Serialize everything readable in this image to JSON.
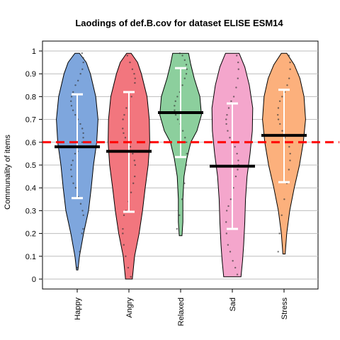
{
  "chart_data": {
    "type": "violin",
    "title": "Laodings of def.B.cov for dataset ELISE ESM14",
    "xlabel": "",
    "ylabel": "Communality of items",
    "ylim": [
      0,
      1
    ],
    "yticks": [
      "0",
      "0.1",
      "0.2",
      "0.3",
      "0.4",
      "0.5",
      "0.6",
      "0.7",
      "0.8",
      "0.9",
      "1"
    ],
    "categories": [
      "Happy",
      "Angry",
      "Relaxed",
      "Sad",
      "Stress"
    ],
    "reference_line": {
      "value": 0.6,
      "color": "#ff0000",
      "style": "dashed"
    },
    "grid": true,
    "series": [
      {
        "color": "#7ea6dd",
        "min": 0.04,
        "max": 0.99,
        "mean": 0.58,
        "sd_low": 0.355,
        "sd_high": 0.81,
        "shape": [
          [
            0.04,
            0.03
          ],
          [
            0.1,
            0.1
          ],
          [
            0.2,
            0.28
          ],
          [
            0.3,
            0.5
          ],
          [
            0.4,
            0.62
          ],
          [
            0.5,
            0.72
          ],
          [
            0.6,
            0.86
          ],
          [
            0.7,
            0.92
          ],
          [
            0.8,
            0.82
          ],
          [
            0.9,
            0.58
          ],
          [
            0.95,
            0.4
          ],
          [
            0.99,
            0.1
          ]
        ],
        "points": [
          0.05,
          0.12,
          0.2,
          0.22,
          0.28,
          0.3,
          0.33,
          0.36,
          0.4,
          0.42,
          0.45,
          0.48,
          0.5,
          0.52,
          0.55,
          0.56,
          0.58,
          0.6,
          0.62,
          0.64,
          0.66,
          0.68,
          0.7,
          0.72,
          0.74,
          0.76,
          0.78,
          0.8,
          0.82,
          0.85,
          0.87,
          0.9,
          0.92,
          0.95,
          0.97,
          0.99
        ]
      },
      {
        "color": "#f2767e",
        "min": 0.0,
        "max": 0.99,
        "mean": 0.56,
        "sd_low": 0.295,
        "sd_high": 0.82,
        "shape": [
          [
            0.0,
            0.15
          ],
          [
            0.1,
            0.25
          ],
          [
            0.2,
            0.45
          ],
          [
            0.3,
            0.6
          ],
          [
            0.4,
            0.72
          ],
          [
            0.5,
            0.85
          ],
          [
            0.6,
            0.92
          ],
          [
            0.7,
            0.9
          ],
          [
            0.8,
            0.8
          ],
          [
            0.9,
            0.55
          ],
          [
            0.95,
            0.38
          ],
          [
            0.99,
            0.1
          ]
        ],
        "points": [
          0.01,
          0.05,
          0.1,
          0.15,
          0.2,
          0.22,
          0.28,
          0.3,
          0.34,
          0.38,
          0.42,
          0.45,
          0.5,
          0.52,
          0.55,
          0.58,
          0.6,
          0.62,
          0.64,
          0.66,
          0.7,
          0.72,
          0.75,
          0.78,
          0.8,
          0.82,
          0.86,
          0.88,
          0.9,
          0.92,
          0.95,
          0.98
        ]
      },
      {
        "color": "#8ccf9d",
        "min": 0.19,
        "max": 0.99,
        "mean": 0.73,
        "sd_low": 0.535,
        "sd_high": 0.925,
        "shape": [
          [
            0.19,
            0.06
          ],
          [
            0.25,
            0.1
          ],
          [
            0.35,
            0.1
          ],
          [
            0.45,
            0.15
          ],
          [
            0.53,
            0.28
          ],
          [
            0.6,
            0.45
          ],
          [
            0.65,
            0.72
          ],
          [
            0.72,
            0.92
          ],
          [
            0.8,
            0.85
          ],
          [
            0.88,
            0.6
          ],
          [
            0.94,
            0.45
          ],
          [
            0.99,
            0.35
          ]
        ],
        "points": [
          0.22,
          0.28,
          0.35,
          0.42,
          0.5,
          0.55,
          0.6,
          0.62,
          0.65,
          0.68,
          0.7,
          0.72,
          0.74,
          0.76,
          0.78,
          0.8,
          0.82,
          0.85,
          0.88,
          0.9,
          0.92,
          0.94,
          0.96,
          0.98,
          0.99
        ]
      },
      {
        "color": "#f4a6cc",
        "min": 0.01,
        "max": 0.99,
        "mean": 0.495,
        "sd_low": 0.22,
        "sd_high": 0.77,
        "shape": [
          [
            0.01,
            0.38
          ],
          [
            0.08,
            0.45
          ],
          [
            0.15,
            0.5
          ],
          [
            0.25,
            0.55
          ],
          [
            0.35,
            0.58
          ],
          [
            0.45,
            0.65
          ],
          [
            0.55,
            0.78
          ],
          [
            0.65,
            0.88
          ],
          [
            0.75,
            0.9
          ],
          [
            0.85,
            0.75
          ],
          [
            0.93,
            0.55
          ],
          [
            0.99,
            0.3
          ]
        ],
        "points": [
          0.02,
          0.05,
          0.08,
          0.12,
          0.15,
          0.2,
          0.25,
          0.3,
          0.32,
          0.35,
          0.4,
          0.45,
          0.48,
          0.5,
          0.52,
          0.55,
          0.58,
          0.6,
          0.62,
          0.65,
          0.68,
          0.7,
          0.72,
          0.75,
          0.78,
          0.8,
          0.84,
          0.88,
          0.92,
          0.95,
          0.98
        ]
      },
      {
        "color": "#fcb07c",
        "min": 0.11,
        "max": 0.99,
        "mean": 0.63,
        "sd_low": 0.425,
        "sd_high": 0.83,
        "shape": [
          [
            0.11,
            0.05
          ],
          [
            0.2,
            0.12
          ],
          [
            0.3,
            0.25
          ],
          [
            0.4,
            0.45
          ],
          [
            0.5,
            0.68
          ],
          [
            0.6,
            0.85
          ],
          [
            0.7,
            0.95
          ],
          [
            0.8,
            0.88
          ],
          [
            0.88,
            0.7
          ],
          [
            0.94,
            0.45
          ],
          [
            0.99,
            0.12
          ]
        ],
        "points": [
          0.12,
          0.2,
          0.28,
          0.35,
          0.42,
          0.48,
          0.52,
          0.55,
          0.58,
          0.6,
          0.62,
          0.65,
          0.68,
          0.7,
          0.72,
          0.75,
          0.78,
          0.8,
          0.82,
          0.85,
          0.88,
          0.92,
          0.95,
          0.98
        ]
      }
    ]
  }
}
